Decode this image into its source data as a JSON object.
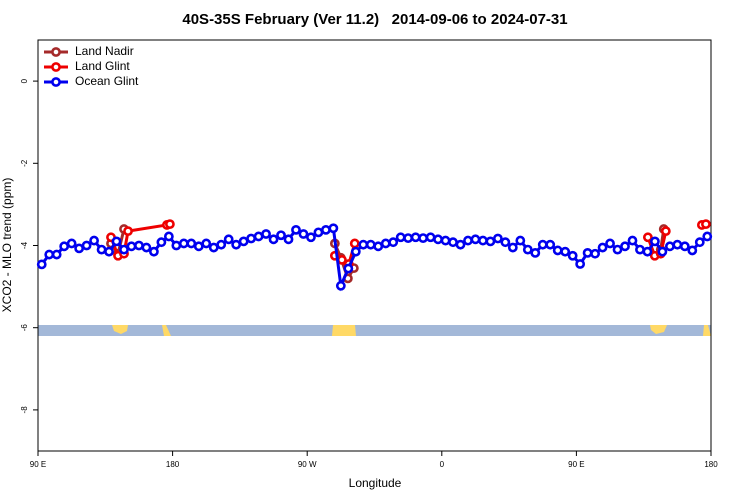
{
  "chart_data": {
    "type": "line",
    "title": "40S-35S February (Ver 11.2)   2014-09-06 to 2024-07-31",
    "x_label": "Longitude",
    "y_label": "XCO2 - MLO trend (ppm)",
    "xlim": [
      90,
      540
    ],
    "xticks": [
      {
        "value": 90,
        "label": "90 E"
      },
      180,
      {
        "value": 270,
        "label": "90 W"
      },
      {
        "value": 360,
        "label": "0"
      },
      {
        "value": 450,
        "label": "90 E"
      },
      {
        "value": 540,
        "label": "180"
      }
    ],
    "ylim": [
      -9,
      1
    ],
    "yticks": [
      0,
      -2,
      -4,
      -6,
      -8
    ],
    "legend": "top-left",
    "series": [
      {
        "name": "Land Nadir",
        "color": "#a52a2a",
        "x": [
          138.8,
          143.5,
          147.5,
          null,
          288.5,
          292.5,
          297.2,
          301.2,
          null,
          506.4,
          508.4
        ],
        "values": [
          -3.95,
          -4.2,
          -3.6,
          null,
          -3.95,
          -4.3,
          -4.8,
          -4.55,
          null,
          -4.1,
          -3.6
        ]
      },
      {
        "name": "Land Glint",
        "color": "#ee0000",
        "x": [
          138.8,
          143.5,
          147.5,
          150.2,
          176.2,
          178.2,
          null,
          288.5,
          293.2,
          297.8,
          301.8,
          null,
          497.8,
          502.4,
          506.4,
          509.8,
          null,
          533.9,
          536.6
        ],
        "values": [
          -3.8,
          -4.25,
          -4.2,
          -3.65,
          -3.5,
          -3.48,
          null,
          -4.25,
          -4.35,
          -4.45,
          -3.95,
          null,
          -3.8,
          -4.25,
          -4.2,
          -3.65,
          null,
          -3.5,
          -3.48
        ]
      },
      {
        "name": "Ocean Glint",
        "color": "#0000ee",
        "x": [
          92.5,
          97.5,
          102.5,
          107.5,
          112.5,
          117.5,
          122.5,
          127.5,
          132.5,
          137.5,
          142.5,
          147.5,
          152.5,
          157.5,
          162.5,
          167.5,
          172.5,
          177.5,
          182.5,
          187.5,
          192.5,
          197.5,
          202.5,
          207.5,
          212.5,
          217.5,
          222.5,
          227.5,
          232.5,
          237.5,
          242.5,
          247.5,
          252.5,
          257.5,
          262.5,
          267.5,
          272.5,
          277.5,
          282.5,
          287.5,
          292.5,
          297.5,
          302.5,
          307.5,
          312.5,
          317.5,
          322.5,
          327.5,
          332.5,
          337.5,
          342.5,
          347.5,
          352.5,
          357.5,
          362.5,
          367.5,
          372.5,
          377.5,
          382.5,
          387.5,
          392.5,
          397.5,
          402.5,
          407.5,
          412.5,
          417.5,
          422.5,
          427.5,
          432.5,
          437.5,
          442.5,
          447.5,
          452.5,
          457.5,
          462.5,
          467.5,
          472.5,
          477.5,
          482.5,
          487.5,
          492.5,
          497.5,
          502.5,
          507.5,
          512.5,
          517.5,
          522.5,
          527.5,
          532.5,
          537.5
        ],
        "values": [
          -4.46,
          -4.22,
          -4.22,
          -4.02,
          -3.95,
          -4.07,
          -4.0,
          -3.88,
          -4.1,
          -4.15,
          -3.9,
          -4.1,
          -4.02,
          -4.0,
          -4.05,
          -4.15,
          -3.92,
          -3.78,
          -4.0,
          -3.95,
          -3.95,
          -4.02,
          -3.95,
          -4.05,
          -3.98,
          -3.85,
          -3.98,
          -3.9,
          -3.83,
          -3.78,
          -3.72,
          -3.85,
          -3.75,
          -3.85,
          -3.62,
          -3.72,
          -3.8,
          -3.68,
          -3.62,
          -3.58,
          -4.98,
          -4.56,
          -4.15,
          -3.98,
          -3.98,
          -4.02,
          -3.95,
          -3.92,
          -3.8,
          -3.82,
          -3.8,
          -3.82,
          -3.8,
          -3.85,
          -3.88,
          -3.92,
          -3.98,
          -3.88,
          -3.85,
          -3.88,
          -3.9,
          -3.83,
          -3.92,
          -4.05,
          -3.88,
          -4.1,
          -4.18,
          -3.98,
          -3.98,
          -4.12,
          -4.15,
          -4.25,
          -4.45,
          -4.18,
          -4.2,
          -4.05,
          -3.95,
          -4.1,
          -4.02,
          -3.88,
          -4.1,
          -4.15,
          -3.9,
          -4.15,
          -4.02,
          -3.98,
          -4.02,
          -4.12,
          -3.92,
          -3.78
        ]
      }
    ]
  }
}
